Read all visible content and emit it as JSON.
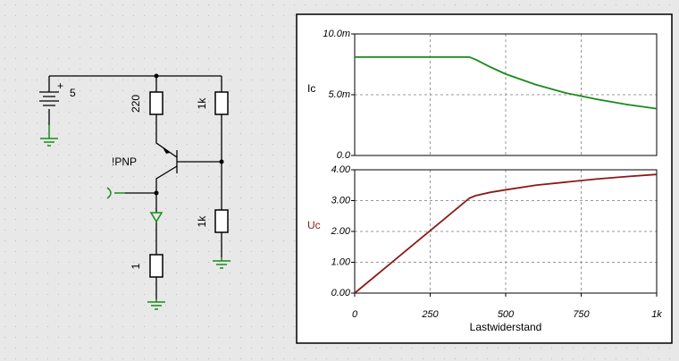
{
  "circuit": {
    "labels": {
      "battery": "5",
      "r_emitter": "220",
      "r_top": "1k",
      "r_bottom": "1k",
      "transistor": "!PNP",
      "r_sense": "1"
    }
  },
  "chart_data": [
    {
      "type": "line",
      "ylabel": "Ic",
      "ylabel_color": "#000000",
      "x": [
        0,
        100,
        200,
        300,
        380,
        400,
        450,
        500,
        600,
        700,
        800,
        900,
        1000
      ],
      "series": [
        {
          "name": "Ic",
          "color": "#1a8a1a",
          "values": [
            0.0081,
            0.0081,
            0.0081,
            0.0081,
            0.0081,
            0.0079,
            0.00727,
            0.0067,
            0.00583,
            0.00514,
            0.00463,
            0.0042,
            0.00385
          ]
        }
      ],
      "xlim": [
        0,
        1000
      ],
      "ylim": [
        0,
        0.01
      ],
      "yticks": [
        {
          "value": 0,
          "label": "0.0"
        },
        {
          "value": 0.005,
          "label": "5.0m"
        },
        {
          "value": 0.01,
          "label": "10.0m"
        }
      ],
      "grid": true
    },
    {
      "type": "line",
      "ylabel": "Uc",
      "ylabel_color": "#8b1a1a",
      "xlabel": "Lastwiderstand",
      "x": [
        0,
        100,
        200,
        300,
        380,
        400,
        450,
        500,
        600,
        700,
        800,
        900,
        1000
      ],
      "series": [
        {
          "name": "Uc",
          "color": "#8b1a1a",
          "values": [
            0,
            0.81,
            1.62,
            2.43,
            3.08,
            3.16,
            3.27,
            3.35,
            3.5,
            3.6,
            3.7,
            3.78,
            3.85
          ]
        }
      ],
      "xlim": [
        0,
        1000
      ],
      "ylim": [
        0,
        4
      ],
      "xticks": [
        0,
        250,
        500,
        750,
        {
          "value": 1000,
          "label": "1k"
        }
      ],
      "yticks": [
        {
          "value": 0,
          "label": "0.00"
        },
        {
          "value": 1,
          "label": "1.00"
        },
        {
          "value": 2,
          "label": "2.00"
        },
        {
          "value": 3,
          "label": "3.00"
        },
        {
          "value": 4,
          "label": "4.00"
        }
      ],
      "grid": true
    }
  ]
}
